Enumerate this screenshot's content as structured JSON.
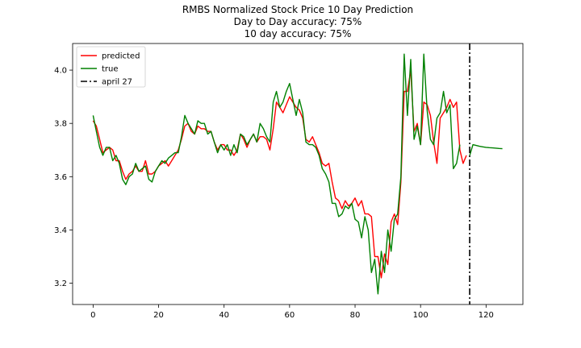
{
  "chart_data": {
    "type": "line",
    "title_lines": [
      "RMBS Normalized Stock Price 10 Day Prediction",
      "Day to Day accuracy: 75%",
      "10 day accuracy: 75%"
    ],
    "xlabel": "",
    "ylabel": "",
    "xlim": [
      -6.25,
      131.25
    ],
    "ylim": [
      3.12,
      4.1
    ],
    "xticks": [
      0,
      20,
      40,
      60,
      80,
      100,
      120
    ],
    "yticks": [
      3.2,
      3.4,
      3.6,
      3.8,
      4.0
    ],
    "grid": false,
    "legend_position": "top-left",
    "vline": {
      "x": 115,
      "label": "april 27",
      "color": "#000000",
      "style": "dashdot"
    },
    "series": [
      {
        "name": "predicted",
        "color": "#ff0000",
        "x_start": 0,
        "values": [
          3.81,
          3.79,
          3.74,
          3.69,
          3.7,
          3.71,
          3.7,
          3.66,
          3.66,
          3.62,
          3.59,
          3.61,
          3.62,
          3.64,
          3.62,
          3.62,
          3.66,
          3.61,
          3.61,
          3.62,
          3.64,
          3.65,
          3.66,
          3.64,
          3.66,
          3.68,
          3.7,
          3.74,
          3.79,
          3.8,
          3.77,
          3.76,
          3.79,
          3.78,
          3.78,
          3.77,
          3.77,
          3.73,
          3.7,
          3.72,
          3.72,
          3.7,
          3.7,
          3.68,
          3.7,
          3.76,
          3.74,
          3.71,
          3.74,
          3.76,
          3.73,
          3.75,
          3.75,
          3.74,
          3.7,
          3.78,
          3.88,
          3.86,
          3.84,
          3.87,
          3.9,
          3.88,
          3.86,
          3.85,
          3.82,
          3.74,
          3.73,
          3.75,
          3.72,
          3.69,
          3.65,
          3.64,
          3.65,
          3.58,
          3.52,
          3.51,
          3.48,
          3.51,
          3.49,
          3.5,
          3.52,
          3.49,
          3.51,
          3.46,
          3.46,
          3.45,
          3.3,
          3.3,
          3.22,
          3.31,
          3.27,
          3.43,
          3.46,
          3.42,
          3.58,
          3.92,
          3.92,
          4.0,
          3.77,
          3.8,
          3.72,
          3.88,
          3.87,
          3.83,
          3.73,
          3.65,
          3.82,
          3.84,
          3.86,
          3.89,
          3.86,
          3.88,
          3.7,
          3.65,
          3.68
        ]
      },
      {
        "name": "true",
        "color": "#008000",
        "x_start": 0,
        "values": [
          3.83,
          3.77,
          3.71,
          3.68,
          3.71,
          3.71,
          3.66,
          3.68,
          3.65,
          3.59,
          3.57,
          3.6,
          3.61,
          3.65,
          3.62,
          3.63,
          3.64,
          3.59,
          3.58,
          3.62,
          3.64,
          3.66,
          3.65,
          3.67,
          3.68,
          3.69,
          3.69,
          3.75,
          3.83,
          3.8,
          3.78,
          3.76,
          3.81,
          3.8,
          3.8,
          3.76,
          3.77,
          3.73,
          3.69,
          3.72,
          3.7,
          3.72,
          3.68,
          3.72,
          3.69,
          3.76,
          3.75,
          3.72,
          3.74,
          3.76,
          3.73,
          3.8,
          3.78,
          3.75,
          3.73,
          3.88,
          3.92,
          3.86,
          3.88,
          3.92,
          3.95,
          3.89,
          3.83,
          3.89,
          3.84,
          3.73,
          3.72,
          3.72,
          3.71,
          3.68,
          3.63,
          3.61,
          3.58,
          3.5,
          3.5,
          3.45,
          3.46,
          3.49,
          3.48,
          3.5,
          3.44,
          3.43,
          3.37,
          3.45,
          3.4,
          3.24,
          3.29,
          3.16,
          3.32,
          3.24,
          3.4,
          3.32,
          3.44,
          3.46,
          3.6,
          4.06,
          3.83,
          4.04,
          3.74,
          3.79,
          3.72,
          4.06,
          3.85,
          3.74,
          3.72,
          3.82,
          3.84,
          3.92,
          3.84,
          3.87,
          3.63,
          3.65,
          3.72
        ]
      },
      {
        "name": "",
        "color": "#008000",
        "x_start": 115,
        "values": [
          3.68,
          3.72,
          3.717,
          3.714,
          3.712,
          3.71,
          3.709,
          3.708,
          3.707,
          3.706,
          3.705
        ]
      }
    ]
  }
}
